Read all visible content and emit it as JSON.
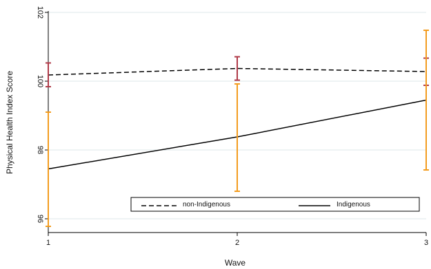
{
  "chart_data": {
    "type": "line",
    "title": "",
    "xlabel": "Wave",
    "ylabel": "Physical Health Index Score",
    "x": [
      1,
      2,
      3
    ],
    "x_tick_labels": [
      "1",
      "2",
      "3"
    ],
    "xlim": [
      1,
      3
    ],
    "ylim": [
      95.6,
      102.0
    ],
    "y_ticks": [
      96,
      98,
      100,
      102
    ],
    "y_tick_labels": [
      "96",
      "98",
      "100",
      "102"
    ],
    "grid": true,
    "legend_position": "bottom-center",
    "series": [
      {
        "name": "non-Indigenous",
        "line_style": "dashed",
        "color": "#000000",
        "error_bar_color": "#b03a48",
        "values": [
          100.18,
          100.37,
          100.28
        ],
        "ci_low": [
          99.84,
          100.03,
          99.88
        ],
        "ci_high": [
          100.53,
          100.71,
          100.67
        ]
      },
      {
        "name": "Indigenous",
        "line_style": "solid",
        "color": "#000000",
        "error_bar_color": "#f39c1e",
        "values": [
          97.45,
          98.38,
          99.45
        ],
        "ci_low": [
          95.78,
          96.8,
          97.42
        ],
        "ci_high": [
          99.1,
          99.92,
          101.48
        ]
      }
    ]
  }
}
